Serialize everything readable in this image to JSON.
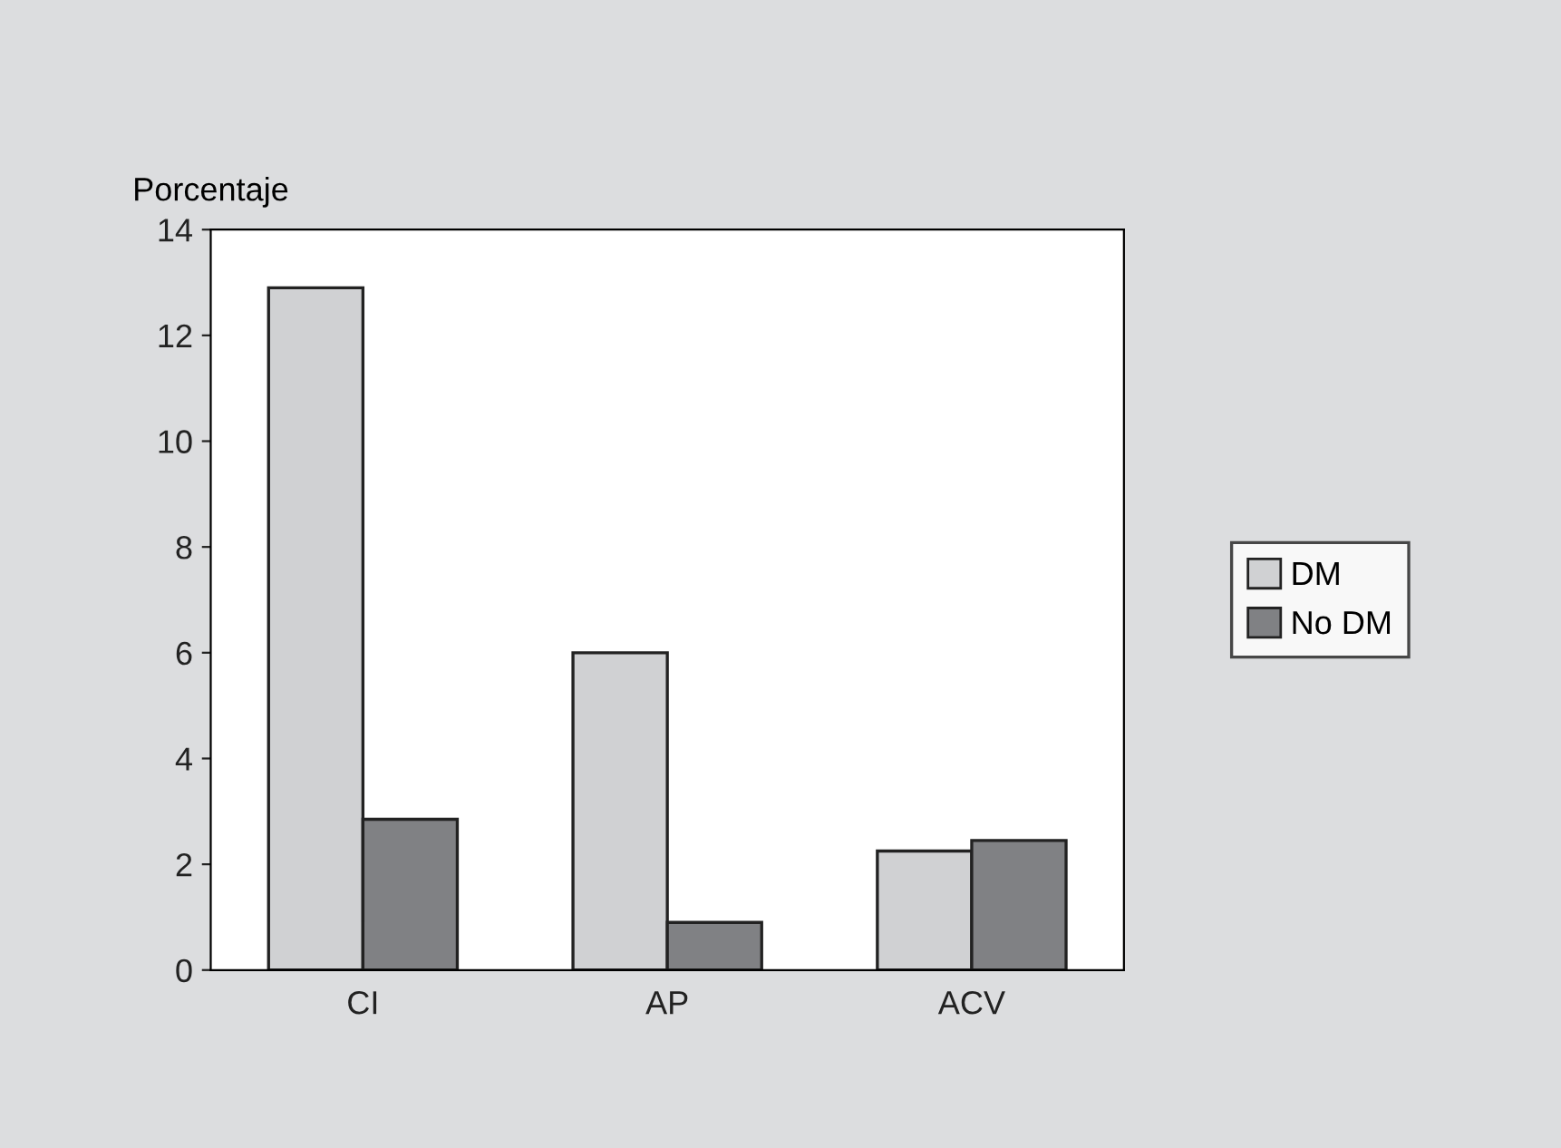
{
  "chart_data": {
    "type": "bar",
    "ylabel": "Porcentaje",
    "categories": [
      "CI",
      "AP",
      "ACV"
    ],
    "series": [
      {
        "name": "DM",
        "color": "#d0d1d3",
        "values": [
          12.9,
          6.0,
          2.25
        ]
      },
      {
        "name": "No DM",
        "color": "#808184",
        "values": [
          2.85,
          0.9,
          2.45
        ]
      }
    ],
    "ylim": [
      0,
      14
    ],
    "yticks": [
      0,
      2,
      4,
      6,
      8,
      10,
      12,
      14
    ],
    "grid": false,
    "legend": "right"
  }
}
